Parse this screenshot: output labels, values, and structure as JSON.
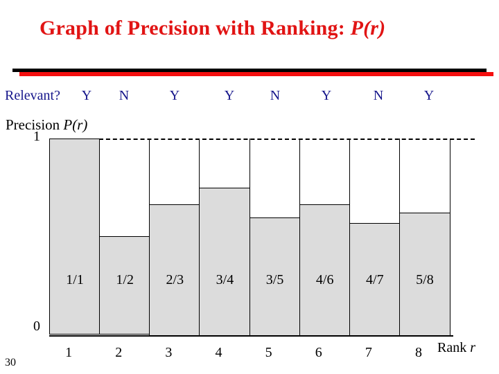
{
  "title": {
    "text": "Graph of Precision with Ranking: ",
    "math": "P(r)"
  },
  "page_number": "30",
  "colors": {
    "title_red": "#e11414",
    "rule_red": "#f50f0f",
    "navy": "#16168b",
    "bar_fill": "#dcdcdc",
    "bar_border": "#000000"
  },
  "relevance_row": {
    "label": "Relevant?",
    "values": [
      "Y",
      "N",
      "Y",
      "Y",
      "N",
      "Y",
      "N",
      "Y"
    ]
  },
  "chart_data": {
    "type": "bar",
    "title_text": "Precision ",
    "title_math": "P(r)",
    "xlabel_text": "Rank ",
    "xlabel_math": "r",
    "ytick_top": "1",
    "ytick_bottom": "0",
    "ylim": [
      0,
      1
    ],
    "grid": "dashed reference line at y = 1",
    "legend": "none",
    "categories": [
      "1",
      "2",
      "3",
      "4",
      "5",
      "6",
      "7",
      "8"
    ],
    "bar_labels": [
      "1/1",
      "1/2",
      "2/3",
      "3/4",
      "3/5",
      "4/6",
      "4/7",
      "5/8"
    ],
    "values": [
      1.0,
      0.5,
      0.6667,
      0.75,
      0.6,
      0.6667,
      0.5714,
      0.625
    ]
  }
}
